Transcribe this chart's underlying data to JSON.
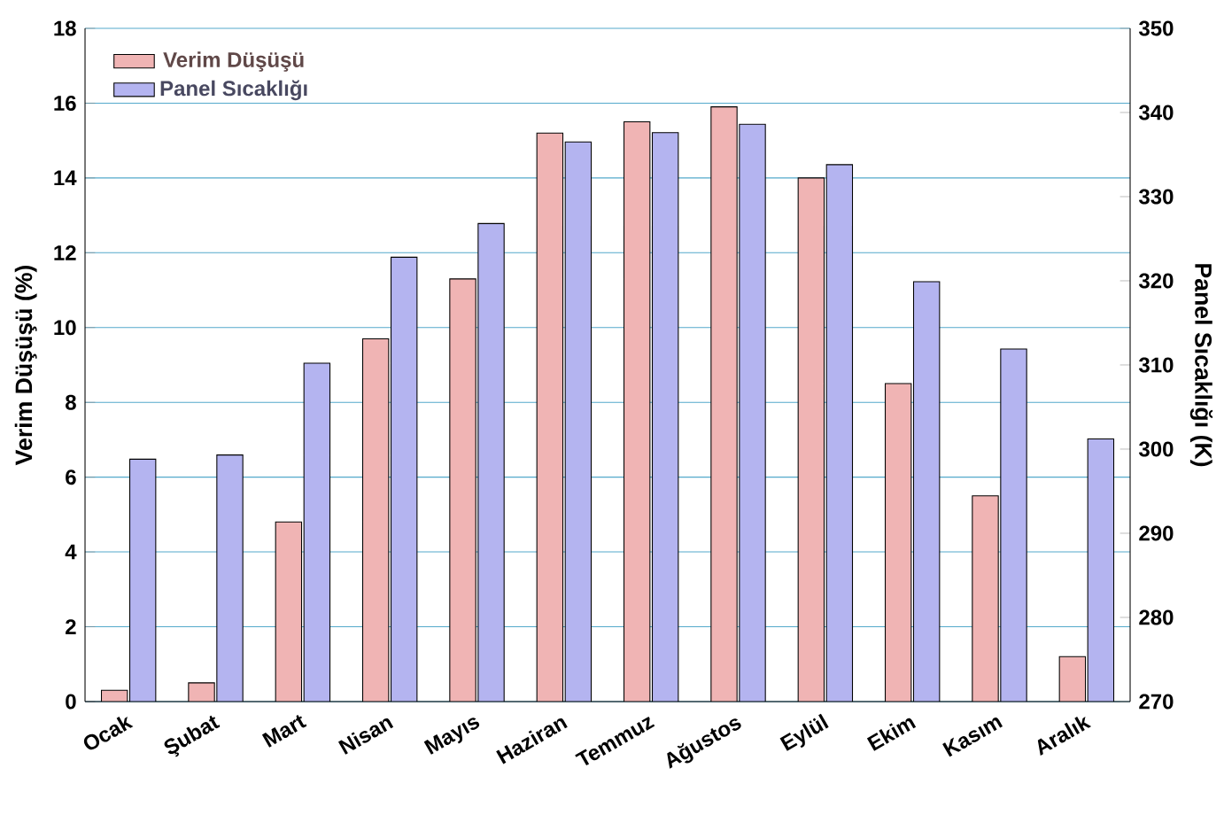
{
  "chart_data": {
    "type": "bar",
    "xlabel": null,
    "ylabel": "Verim Düşüşü (%)",
    "y2label": "Panel Sıcaklığı (K)",
    "categories": [
      "Ocak",
      "Şubat",
      "Mart",
      "Nisan",
      "Mayıs",
      "Haziran",
      "Temmuz",
      "Ağustos",
      "Eylül",
      "Ekim",
      "Kasım",
      "Aralık"
    ],
    "series": [
      {
        "name": "Verim Düşüşü",
        "color": "#f0b4b4",
        "values": [
          0.3,
          0.5,
          4.8,
          9.7,
          11.3,
          15.2,
          15.5,
          15.9,
          14.0,
          8.5,
          5.5,
          1.2
        ]
      },
      {
        "name": "Panel Sıcaklığı",
        "color": "#b4b4f0",
        "axis": "y2",
        "values": [
          298.8,
          299.3,
          310.2,
          322.8,
          326.8,
          336.5,
          337.6,
          338.6,
          333.8,
          319.9,
          311.9,
          301.2
        ]
      }
    ],
    "ylim": [
      0,
      18
    ],
    "yticks": [
      0,
      2,
      4,
      6,
      8,
      10,
      12,
      14,
      16,
      18
    ],
    "y2lim": [
      270,
      350
    ],
    "y2ticks": [
      270,
      280,
      290,
      300,
      310,
      320,
      330,
      340,
      350
    ],
    "grid": "y",
    "legend": "top left"
  }
}
